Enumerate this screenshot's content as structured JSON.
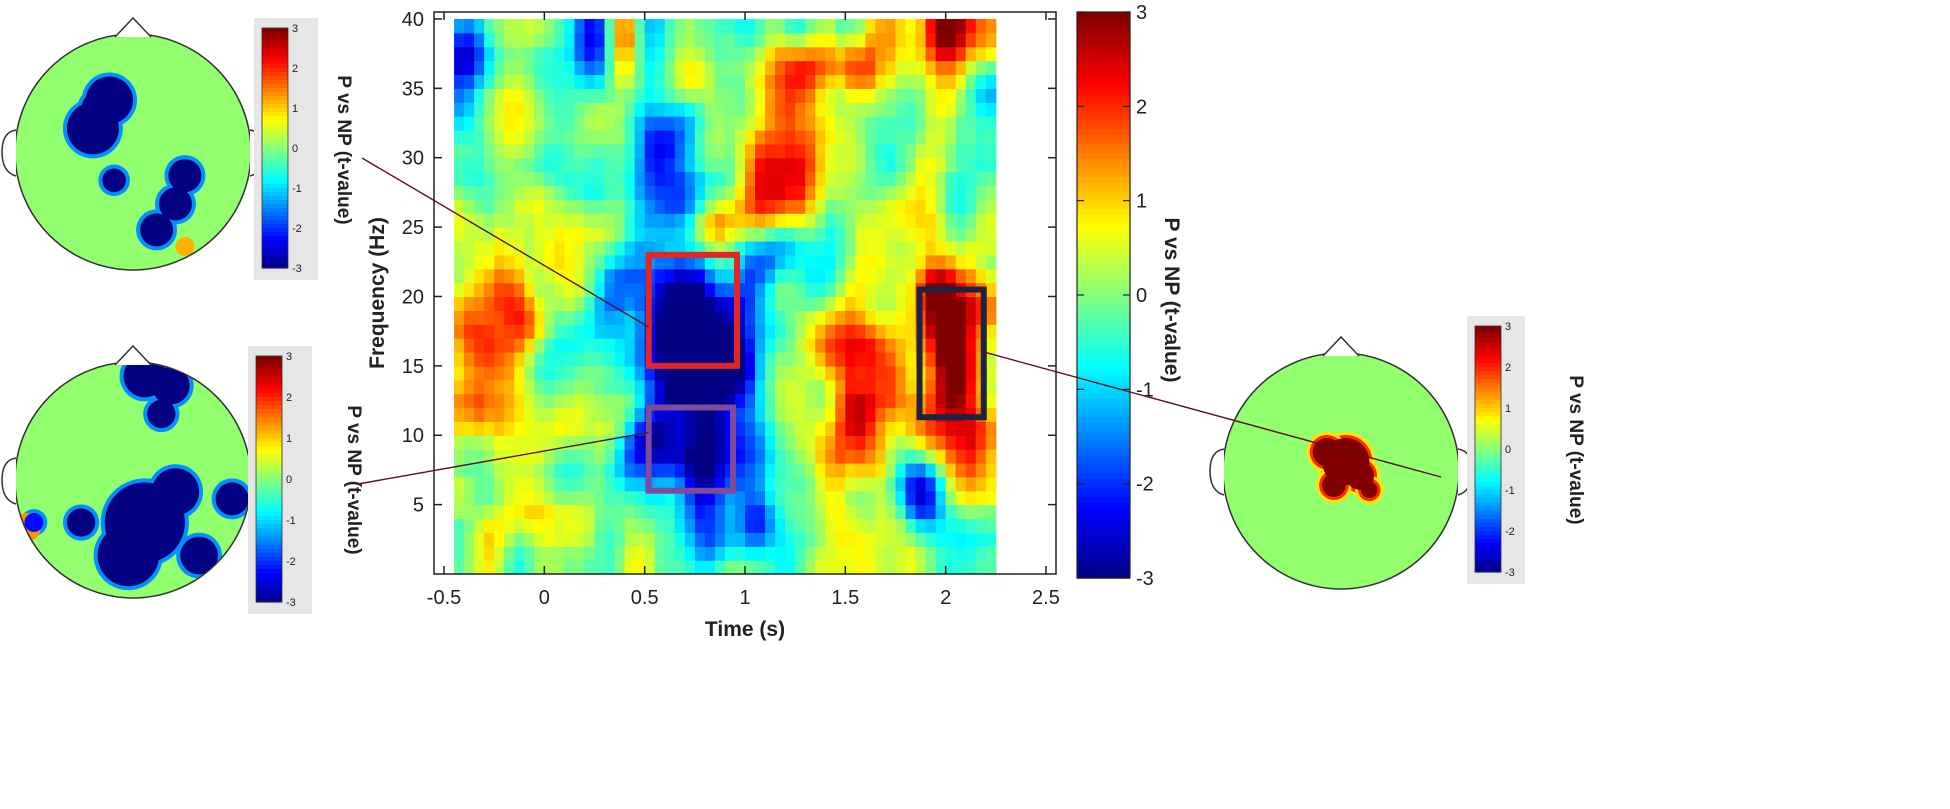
{
  "chart_data": {
    "type": "heatmap",
    "main_plot": {
      "xlabel": "Time (s)",
      "ylabel": "Frequency (Hz)",
      "xlim": [
        -0.55,
        2.55
      ],
      "ylim": [
        0,
        40.5
      ],
      "data_extent_x": [
        -0.45,
        2.25
      ],
      "x_ticks": [
        -0.5,
        0,
        0.5,
        1,
        1.5,
        2,
        2.5
      ],
      "x_tick_labels": [
        "-0.5",
        "0",
        "0.5",
        "1",
        "1.5",
        "2",
        "2.5"
      ],
      "y_ticks": [
        5,
        10,
        15,
        20,
        25,
        30,
        35,
        40
      ],
      "y_tick_labels": [
        "5",
        "10",
        "15",
        "20",
        "25",
        "30",
        "35",
        "40"
      ],
      "colormap": "jet",
      "clim": [
        -3,
        3
      ],
      "grid": false,
      "features": [
        {
          "t": 0.7,
          "f": 18.5,
          "st": 0.24,
          "sf": 3.5,
          "v": -3.2
        },
        {
          "t": 0.75,
          "f": 9.0,
          "st": 0.22,
          "sf": 3.0,
          "v": -3.2
        },
        {
          "t": 0.85,
          "f": 14.5,
          "st": 0.12,
          "sf": 2.0,
          "v": -1.6
        },
        {
          "t": 0.82,
          "f": 3.0,
          "st": 0.1,
          "sf": 2.0,
          "v": -1.8
        },
        {
          "t": 2.05,
          "f": 16.0,
          "st": 0.12,
          "sf": 5.0,
          "v": 3.2
        },
        {
          "t": 1.95,
          "f": 21.0,
          "st": 0.07,
          "sf": 2.5,
          "v": 2.0
        },
        {
          "t": 1.62,
          "f": 15.0,
          "st": 0.14,
          "sf": 3.5,
          "v": 2.0
        },
        {
          "t": 1.55,
          "f": 9.5,
          "st": 0.12,
          "sf": 3.0,
          "v": 1.8
        },
        {
          "t": 1.2,
          "f": 29.0,
          "st": 0.16,
          "sf": 3.0,
          "v": 2.6
        },
        {
          "t": 0.85,
          "f": 25.0,
          "st": 0.1,
          "sf": 1.5,
          "v": 1.8
        },
        {
          "t": 2.0,
          "f": 39.5,
          "st": 0.12,
          "sf": 2.0,
          "v": 3.2
        },
        {
          "t": 1.45,
          "f": 36.5,
          "st": 0.22,
          "sf": 1.5,
          "v": 2.0
        },
        {
          "t": -0.3,
          "f": 18.0,
          "st": 0.1,
          "sf": 4.0,
          "v": 1.8
        },
        {
          "t": -0.1,
          "f": 18.0,
          "st": 0.08,
          "sf": 3.0,
          "v": 1.2
        },
        {
          "t": 0.05,
          "f": 23.0,
          "st": 0.08,
          "sf": 2.0,
          "v": 1.2
        },
        {
          "t": -0.3,
          "f": 12.0,
          "st": 0.12,
          "sf": 2.0,
          "v": 1.2
        },
        {
          "t": 0.3,
          "f": 9.0,
          "st": 0.1,
          "sf": 2.0,
          "v": 0.9
        },
        {
          "t": -0.2,
          "f": 3.5,
          "st": 0.12,
          "sf": 1.5,
          "v": 1.0
        },
        {
          "t": 0.4,
          "f": 38.5,
          "st": 0.06,
          "sf": 2.0,
          "v": 2.0
        },
        {
          "t": -0.4,
          "f": 38.5,
          "st": 0.08,
          "sf": 2.5,
          "v": -2.6
        },
        {
          "t": 0.25,
          "f": 39.0,
          "st": 0.08,
          "sf": 2.5,
          "v": -2.6
        },
        {
          "t": 0.6,
          "f": 29.0,
          "st": 0.14,
          "sf": 2.5,
          "v": -2.0
        },
        {
          "t": 0.5,
          "f": 33.0,
          "st": 0.1,
          "sf": 2.0,
          "v": -1.4
        },
        {
          "t": 1.2,
          "f": 23.0,
          "st": 0.1,
          "sf": 2.0,
          "v": -1.4
        },
        {
          "t": 1.9,
          "f": 6.0,
          "st": 0.08,
          "sf": 2.0,
          "v": -2.2
        },
        {
          "t": 1.05,
          "f": 4.0,
          "st": 0.06,
          "sf": 2.0,
          "v": -1.6
        },
        {
          "t": 2.05,
          "f": 26.0,
          "st": 0.08,
          "sf": 2.5,
          "v": -1.2
        },
        {
          "t": 1.95,
          "f": 32.0,
          "st": 0.08,
          "sf": 2.0,
          "v": 1.2
        },
        {
          "t": 2.15,
          "f": 9.0,
          "st": 0.08,
          "sf": 2.0,
          "v": 1.0
        }
      ],
      "boxes": [
        {
          "label": "red",
          "color": "#e52424",
          "t0": 0.52,
          "t1": 0.96,
          "f0": 15.0,
          "f1": 23.0
        },
        {
          "label": "purple",
          "color": "#7e4a9b",
          "t0": 0.52,
          "t1": 0.94,
          "f0": 6.0,
          "f1": 12.0
        },
        {
          "label": "navy",
          "color": "#1c2340",
          "t0": 1.87,
          "t1": 2.19,
          "f0": 11.3,
          "f1": 20.5
        }
      ]
    },
    "main_colorbar": {
      "label": "P vs NP (t-value)",
      "ticks": [
        -3,
        -2,
        -1,
        0,
        1,
        2,
        3
      ],
      "tick_labels": [
        "-3",
        "-2",
        "-1",
        "0",
        "1",
        "2",
        "3"
      ]
    },
    "topographies": [
      {
        "id": "topo-top-left",
        "linked_box": "red",
        "colorbar_label": "P vs NP (t-value)",
        "colorbar_ticks": [
          "3",
          "2",
          "1",
          "0",
          "-1",
          "-2",
          "-3"
        ],
        "blobs": [
          {
            "cx": 0.4,
            "cy": 0.28,
            "r": 0.1,
            "v": -3
          },
          {
            "cx": 0.33,
            "cy": 0.4,
            "r": 0.11,
            "v": -3
          },
          {
            "cx": 0.36,
            "cy": 0.32,
            "r": 0.08,
            "v": -3
          },
          {
            "cx": 0.42,
            "cy": 0.62,
            "r": 0.05,
            "v": -3
          },
          {
            "cx": 0.72,
            "cy": 0.6,
            "r": 0.07,
            "v": -3
          },
          {
            "cx": 0.68,
            "cy": 0.72,
            "r": 0.07,
            "v": -3
          },
          {
            "cx": 0.6,
            "cy": 0.83,
            "r": 0.07,
            "v": -3
          },
          {
            "cx": 0.72,
            "cy": 0.9,
            "r": 0.04,
            "v": 1.2
          }
        ]
      },
      {
        "id": "topo-bottom-left",
        "linked_box": "purple",
        "colorbar_label": "P vs NP (t-value)",
        "colorbar_ticks": [
          "3",
          "2",
          "1",
          "0",
          "-1",
          "-2",
          "-3"
        ],
        "blobs": [
          {
            "cx": 0.55,
            "cy": 0.06,
            "r": 0.09,
            "v": -3
          },
          {
            "cx": 0.66,
            "cy": 0.1,
            "r": 0.08,
            "v": -3
          },
          {
            "cx": 0.62,
            "cy": 0.22,
            "r": 0.06,
            "v": -3
          },
          {
            "cx": 0.55,
            "cy": 0.68,
            "r": 0.17,
            "v": -3
          },
          {
            "cx": 0.48,
            "cy": 0.82,
            "r": 0.13,
            "v": -3
          },
          {
            "cx": 0.68,
            "cy": 0.55,
            "r": 0.1,
            "v": -3
          },
          {
            "cx": 0.78,
            "cy": 0.82,
            "r": 0.08,
            "v": -3
          },
          {
            "cx": 0.92,
            "cy": 0.58,
            "r": 0.07,
            "v": -3
          },
          {
            "cx": 0.28,
            "cy": 0.68,
            "r": 0.06,
            "v": -3
          },
          {
            "cx": 0.05,
            "cy": 0.7,
            "r": 0.06,
            "v": 1.4
          },
          {
            "cx": 0.08,
            "cy": 0.68,
            "r": 0.04,
            "v": -2.2
          }
        ]
      },
      {
        "id": "topo-right",
        "linked_box": "navy",
        "colorbar_label": "P vs NP (t-value)",
        "colorbar_ticks": [
          "3",
          "2",
          "1",
          "0",
          "-1",
          "-2",
          "-3"
        ],
        "blobs": [
          {
            "cx": 0.52,
            "cy": 0.46,
            "r": 0.1,
            "v": 3
          },
          {
            "cx": 0.44,
            "cy": 0.42,
            "r": 0.06,
            "v": 3
          },
          {
            "cx": 0.58,
            "cy": 0.52,
            "r": 0.06,
            "v": 3
          },
          {
            "cx": 0.47,
            "cy": 0.56,
            "r": 0.05,
            "v": 3
          },
          {
            "cx": 0.62,
            "cy": 0.58,
            "r": 0.035,
            "v": 3
          }
        ]
      }
    ]
  },
  "colors": {
    "axis": "#222222",
    "connector": "#5a1220",
    "head_outline": "#333333",
    "colorbar_panel_bg": "#e6e6e6"
  }
}
